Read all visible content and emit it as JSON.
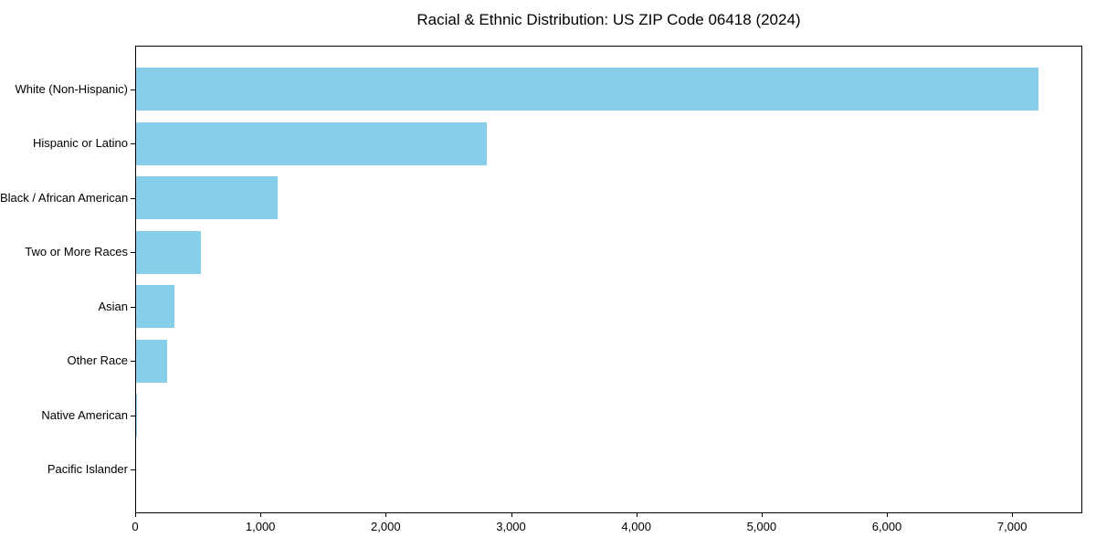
{
  "chart_data": {
    "type": "bar",
    "orientation": "horizontal",
    "title": "Racial & Ethnic Distribution: US ZIP Code 06418 (2024)",
    "categories": [
      "White (Non-Hispanic)",
      "Hispanic or Latino",
      "Black / African American",
      "Two or More Races",
      "Asian",
      "Other Race",
      "Native American",
      "Pacific Islander"
    ],
    "values": [
      7200,
      2800,
      1130,
      520,
      305,
      250,
      10,
      0
    ],
    "xlabel": "",
    "ylabel": "",
    "xlim": [
      0,
      7560
    ],
    "x_ticks": [
      0,
      1000,
      2000,
      3000,
      4000,
      5000,
      6000,
      7000
    ],
    "x_tick_labels": [
      "0",
      "1,000",
      "2,000",
      "3,000",
      "4,000",
      "5,000",
      "6,000",
      "7,000"
    ],
    "bar_color": "#87CEEB",
    "spine_color": "#000000",
    "text_color": "#000000",
    "grid": false,
    "legend": null
  }
}
